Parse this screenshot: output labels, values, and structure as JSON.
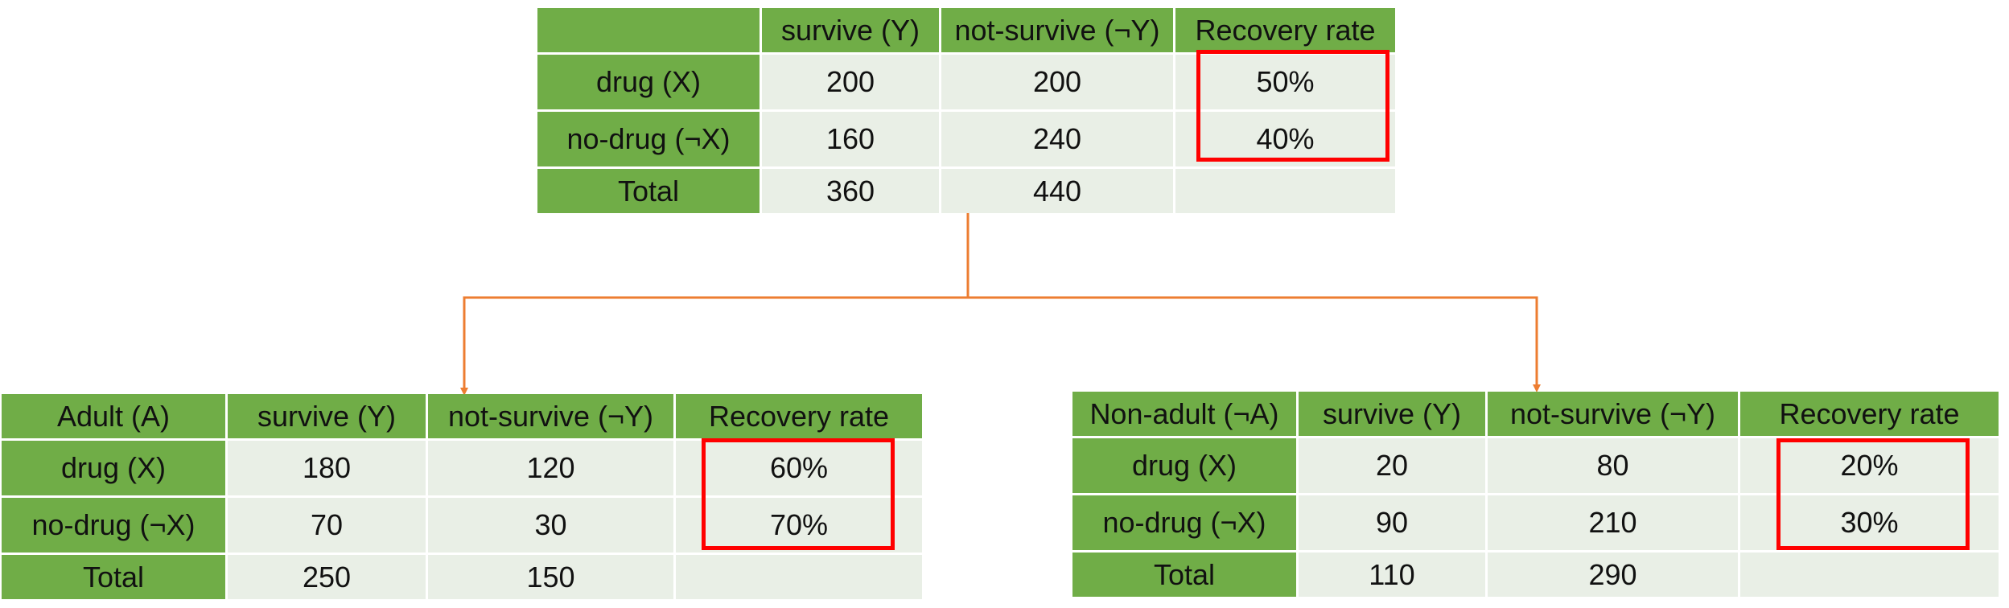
{
  "colors": {
    "header": "#70ad47",
    "body": "#e9efe6",
    "highlight": "#ff0000",
    "connector": "#ed7d31"
  },
  "top": {
    "corner": "",
    "headers": [
      "survive (Y)",
      "not-survive (¬Y)",
      "Recovery rate"
    ],
    "rows": [
      {
        "label": "drug (X)",
        "survive": "200",
        "not_survive": "200",
        "rate": "50%"
      },
      {
        "label": "no-drug (¬X)",
        "survive": "160",
        "not_survive": "240",
        "rate": "40%"
      },
      {
        "label": "Total",
        "survive": "360",
        "not_survive": "440",
        "rate": ""
      }
    ]
  },
  "adult": {
    "corner": "Adult (A)",
    "headers": [
      "survive (Y)",
      "not-survive (¬Y)",
      "Recovery rate"
    ],
    "rows": [
      {
        "label": "drug (X)",
        "survive": "180",
        "not_survive": "120",
        "rate": "60%"
      },
      {
        "label": "no-drug (¬X)",
        "survive": "70",
        "not_survive": "30",
        "rate": "70%"
      },
      {
        "label": "Total",
        "survive": "250",
        "not_survive": "150",
        "rate": ""
      }
    ]
  },
  "nonadult": {
    "corner": "Non-adult (¬A)",
    "headers": [
      "survive (Y)",
      "not-survive (¬Y)",
      "Recovery rate"
    ],
    "rows": [
      {
        "label": "drug (X)",
        "survive": "20",
        "not_survive": "80",
        "rate": "20%"
      },
      {
        "label": "no-drug (¬X)",
        "survive": "90",
        "not_survive": "210",
        "rate": "30%"
      },
      {
        "label": "Total",
        "survive": "110",
        "not_survive": "290",
        "rate": ""
      }
    ]
  }
}
